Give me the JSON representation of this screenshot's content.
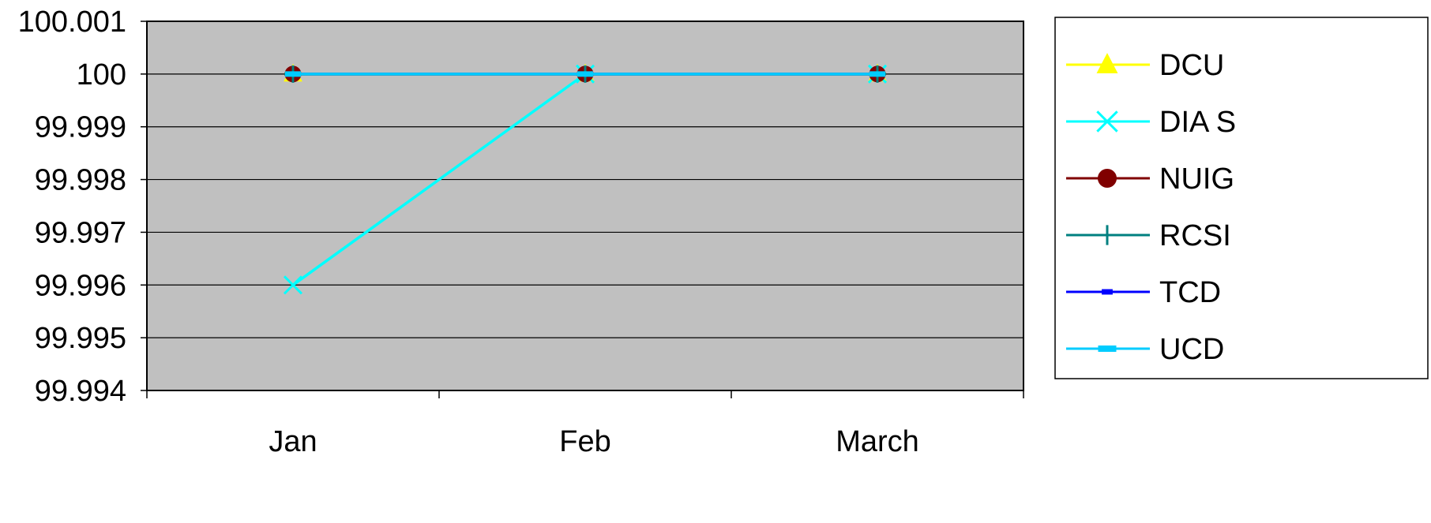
{
  "chart_data": {
    "type": "line",
    "categories": [
      "Jan",
      "Feb",
      "March"
    ],
    "ylim": [
      99.994,
      100.001
    ],
    "yticks": [
      "100.001",
      "100",
      "99.999",
      "99.998",
      "99.997",
      "99.996",
      "99.995",
      "99.994"
    ],
    "grid": true,
    "legend_position": "right",
    "plot_background": "#C0C0C0",
    "series": [
      {
        "name": "DCU",
        "values": [
          100,
          100,
          100
        ],
        "color": "#FFFF00",
        "marker": "triangle"
      },
      {
        "name": "DIAS",
        "values": [
          99.996,
          100,
          100
        ],
        "color": "#00FFFF",
        "marker": "x"
      },
      {
        "name": "NUIG",
        "values": [
          100,
          100,
          100
        ],
        "color": "#800000",
        "marker": "circle"
      },
      {
        "name": "RCSI",
        "values": [
          100,
          100,
          100
        ],
        "color": "#008080",
        "marker": "plus"
      },
      {
        "name": "TCD",
        "values": [
          100,
          100,
          100
        ],
        "color": "#0000FF",
        "marker": "dash"
      },
      {
        "name": "UCD",
        "values": [
          100,
          100,
          100
        ],
        "color": "#00CCFF",
        "marker": "bar"
      }
    ],
    "legend_labels": [
      "DCU",
      "DIA S",
      "NUIG",
      "RCSI",
      "TCD",
      "UCD"
    ]
  }
}
